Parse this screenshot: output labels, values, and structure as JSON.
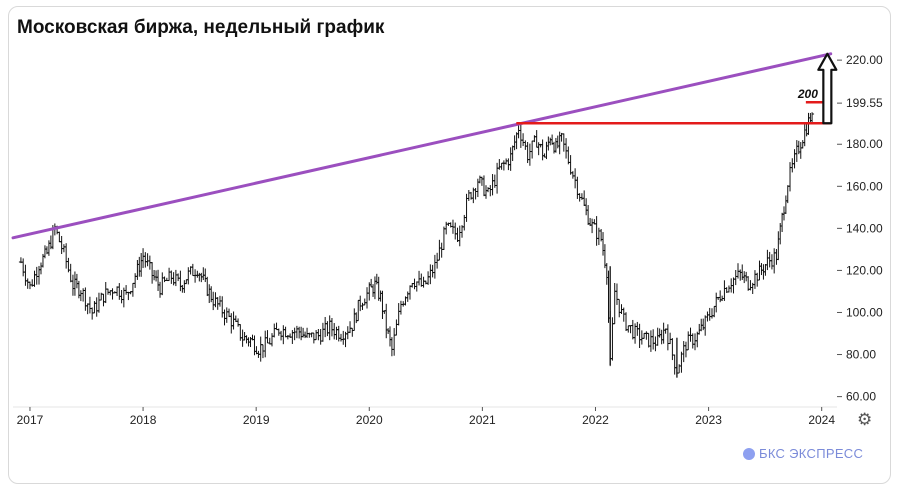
{
  "title": "Московская биржа, недельный график",
  "brand": {
    "logo_icon": "bks-logo-icon",
    "text": "БКС ЭКСПРЕСС"
  },
  "settings_icon": "gear-icon",
  "chart_data": {
    "type": "ohlc-bar",
    "xlabel": "",
    "ylabel": "",
    "x_ticks": [
      "2017",
      "2018",
      "2019",
      "2020",
      "2021",
      "2022",
      "2023",
      "2024"
    ],
    "y_ticks": [
      "60.00",
      "80.00",
      "100.00",
      "120.00",
      "140.00",
      "160.00",
      "180.00",
      "199.55",
      "220.00"
    ],
    "ylim": [
      56,
      231
    ],
    "xlim": [
      2016.85,
      2024.1
    ],
    "series_color": "#111111",
    "series": [
      {
        "name": "",
        "points": [
          [
            2016.92,
            124
          ],
          [
            2017.0,
            112
          ],
          [
            2017.08,
            123
          ],
          [
            2017.15,
            128
          ],
          [
            2017.22,
            140
          ],
          [
            2017.3,
            128
          ],
          [
            2017.38,
            113
          ],
          [
            2017.45,
            111
          ],
          [
            2017.55,
            100
          ],
          [
            2017.65,
            108
          ],
          [
            2017.75,
            112
          ],
          [
            2017.85,
            108
          ],
          [
            2017.95,
            120
          ],
          [
            2018.0,
            127
          ],
          [
            2018.08,
            118
          ],
          [
            2018.15,
            112
          ],
          [
            2018.25,
            117
          ],
          [
            2018.33,
            113
          ],
          [
            2018.4,
            118
          ],
          [
            2018.48,
            121
          ],
          [
            2018.55,
            113
          ],
          [
            2018.62,
            106
          ],
          [
            2018.7,
            101
          ],
          [
            2018.8,
            95
          ],
          [
            2018.88,
            88
          ],
          [
            2018.95,
            87
          ],
          [
            2019.02,
            83
          ],
          [
            2019.1,
            85
          ],
          [
            2019.2,
            92
          ],
          [
            2019.3,
            91
          ],
          [
            2019.38,
            91
          ],
          [
            2019.45,
            88
          ],
          [
            2019.55,
            89
          ],
          [
            2019.65,
            93
          ],
          [
            2019.75,
            90
          ],
          [
            2019.85,
            94
          ],
          [
            2019.92,
            105
          ],
          [
            2020.0,
            110
          ],
          [
            2020.05,
            113
          ],
          [
            2020.1,
            107
          ],
          [
            2020.15,
            93
          ],
          [
            2020.2,
            82
          ],
          [
            2020.28,
            104
          ],
          [
            2020.38,
            116
          ],
          [
            2020.48,
            112
          ],
          [
            2020.58,
            122
          ],
          [
            2020.68,
            140
          ],
          [
            2020.78,
            137
          ],
          [
            2020.88,
            155
          ],
          [
            2020.96,
            163
          ],
          [
            2021.05,
            156
          ],
          [
            2021.15,
            168
          ],
          [
            2021.25,
            174
          ],
          [
            2021.32,
            188
          ],
          [
            2021.4,
            175
          ],
          [
            2021.48,
            182
          ],
          [
            2021.55,
            174
          ],
          [
            2021.6,
            184
          ],
          [
            2021.65,
            178
          ],
          [
            2021.7,
            182
          ],
          [
            2021.8,
            166
          ],
          [
            2021.9,
            150
          ],
          [
            2021.97,
            141
          ],
          [
            2022.05,
            135
          ],
          [
            2022.1,
            120
          ],
          [
            2022.13,
            75
          ],
          [
            2022.17,
            110
          ],
          [
            2022.25,
            96
          ],
          [
            2022.35,
            90
          ],
          [
            2022.45,
            87
          ],
          [
            2022.55,
            86
          ],
          [
            2022.62,
            93
          ],
          [
            2022.68,
            80
          ],
          [
            2022.72,
            73
          ],
          [
            2022.8,
            85
          ],
          [
            2022.9,
            89
          ],
          [
            2022.97,
            95
          ],
          [
            2023.05,
            103
          ],
          [
            2023.12,
            110
          ],
          [
            2023.2,
            115
          ],
          [
            2023.28,
            118
          ],
          [
            2023.35,
            114
          ],
          [
            2023.45,
            119
          ],
          [
            2023.52,
            124
          ],
          [
            2023.6,
            127
          ],
          [
            2023.65,
            145
          ],
          [
            2023.7,
            162
          ],
          [
            2023.78,
            176
          ],
          [
            2023.85,
            186
          ],
          [
            2023.9,
            193
          ],
          [
            2023.93,
            190
          ]
        ]
      }
    ],
    "annotations": [
      {
        "type": "trendline",
        "color": "#9b4fbf",
        "from": [
          2016.85,
          135.5
        ],
        "to": [
          2024.08,
          223
        ]
      },
      {
        "type": "horizontal",
        "color": "#e31b1b",
        "y": 190,
        "x_from": 2021.3,
        "x_to": 2024.08
      },
      {
        "type": "horizontal",
        "color": "#e31b1b",
        "y": 200,
        "x_from": 2023.86,
        "x_to": 2024.08,
        "label": "200"
      },
      {
        "type": "arrow-up",
        "color": "#111111",
        "x": 2024.05,
        "y_from": 190,
        "y_to": 223
      }
    ]
  }
}
